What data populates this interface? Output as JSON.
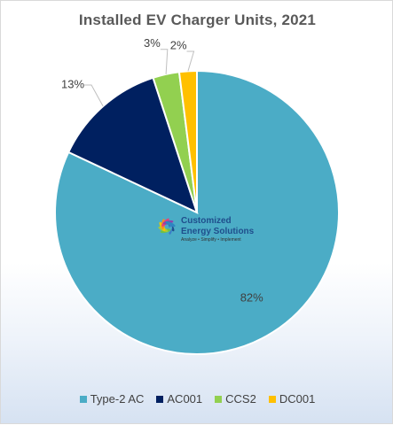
{
  "chart_data": {
    "type": "pie",
    "title": "Installed EV  Charger Units, 2021",
    "categories": [
      "Type-2 AC",
      "AC001",
      "CCS2",
      "DC001"
    ],
    "values": [
      82,
      13,
      3,
      2
    ],
    "data_labels": [
      "82%",
      "13%",
      "3%",
      "2%"
    ],
    "colors": [
      "#4bacc6",
      "#002060",
      "#92d050",
      "#ffc000"
    ],
    "legend_position": "bottom"
  },
  "logo": {
    "name_line1": "Customized",
    "name_line2": "Energy Solutions",
    "tagline": "Analyze • Simplify • Implement"
  }
}
